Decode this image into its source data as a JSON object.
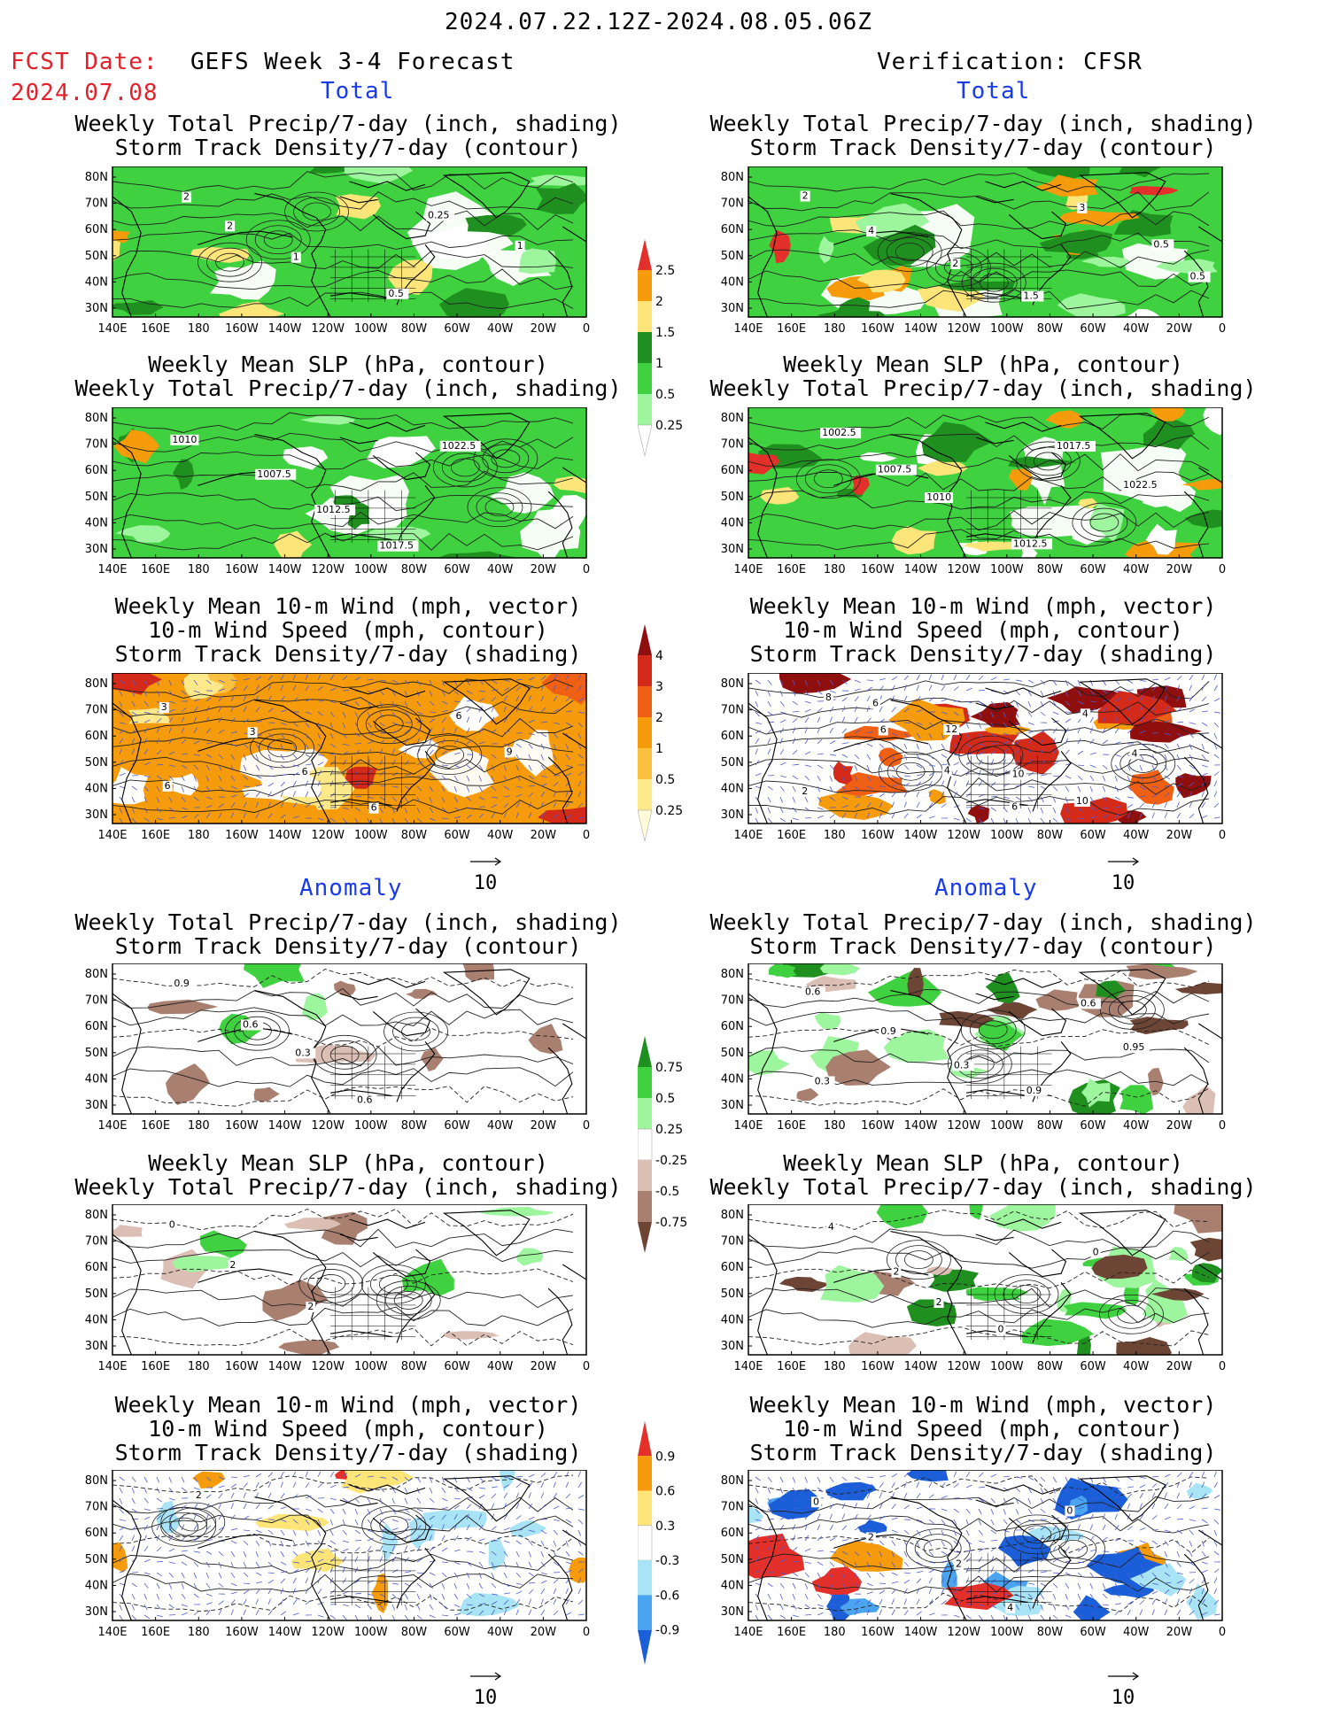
{
  "header": {
    "date_range": "2024.07.22.12Z-2024.08.05.06Z",
    "fcst_label": "FCST Date:",
    "fcst_date": "2024.07.08",
    "left_title": "GEFS Week 3-4 Forecast",
    "right_title": "Verification: CFSR"
  },
  "sections": {
    "total": "Total",
    "anomaly": "Anomaly"
  },
  "titles": {
    "precip_storm": [
      "Weekly Total Precip/7-day (inch, shading)",
      "Storm Track Density/7-day (contour)"
    ],
    "slp_precip": [
      "Weekly Mean SLP (hPa, contour)",
      "Weekly Total Precip/7-day (inch, shading)"
    ],
    "wind": [
      "Weekly Mean 10-m Wind (mph, vector)",
      "10-m Wind Speed (mph, contour)",
      "Storm Track Density/7-day (shading)"
    ]
  },
  "axes": {
    "lon_labels": [
      "140E",
      "160E",
      "180",
      "160W",
      "140W",
      "120W",
      "100W",
      "80W",
      "60W",
      "40W",
      "20W",
      "0"
    ],
    "lat_labels": [
      "80N",
      "70N",
      "60N",
      "50N",
      "40N",
      "30N"
    ]
  },
  "vector_key": "10",
  "colorbars": {
    "precip_total": {
      "labels": [
        "2.5",
        "2",
        "1.5",
        "1",
        "0.5",
        "0.25"
      ],
      "colors": [
        "#e4302a",
        "#f59b0c",
        "#fde57a",
        "#1f8f1f",
        "#3fd13f",
        "#9df59d",
        "#ffffff"
      ]
    },
    "storm_total": {
      "labels": [
        "4",
        "3",
        "2",
        "1",
        "0.5",
        "0.25"
      ],
      "colors": [
        "#8f0f0f",
        "#d42a1a",
        "#f06014",
        "#f59b0c",
        "#fcc040",
        "#fde88a",
        "#fffbd8"
      ]
    },
    "precip_anom": {
      "labels": [
        "0.75",
        "0.5",
        "0.25",
        "-0.25",
        "-0.5",
        "-0.75"
      ],
      "colors": [
        "#1f8f1f",
        "#3fd13f",
        "#9df59d",
        "#ffffff",
        "#dbbfb4",
        "#a97f70",
        "#6d4535"
      ]
    },
    "storm_anom": {
      "labels": [
        "0.9",
        "0.6",
        "0.3",
        "-0.3",
        "-0.6",
        "-0.9"
      ],
      "colors": [
        "#e4302a",
        "#f59b0c",
        "#fde57a",
        "#ffffff",
        "#a8e4f6",
        "#4aa4f0",
        "#1a5ed8"
      ]
    }
  },
  "panels": [
    {
      "id": "fc-total-precip",
      "labels": [
        "2",
        "2",
        "1",
        "0.5",
        "0.25",
        "1"
      ],
      "fill": "precip",
      "contours": "black"
    },
    {
      "id": "ver-total-precip",
      "labels": [
        "2",
        "4",
        "2",
        "1.5",
        "3",
        "0.5",
        "0.5"
      ],
      "fill": "precip-heavy",
      "contours": "black"
    },
    {
      "id": "fc-total-slp",
      "labels": [
        "1010",
        "1007.5",
        "1012.5",
        "1017.5",
        "1022.5"
      ],
      "fill": "precip",
      "contours": "black"
    },
    {
      "id": "ver-total-slp",
      "labels": [
        "1002.5",
        "1007.5",
        "1010",
        "1012.5",
        "1017.5",
        "1022.5"
      ],
      "fill": "precip-heavy",
      "contours": "black"
    },
    {
      "id": "fc-total-wind",
      "labels": [
        "3",
        "3",
        "6",
        "6",
        "6",
        "9",
        "6"
      ],
      "fill": "storm",
      "contours": "black"
    },
    {
      "id": "ver-total-wind",
      "labels": [
        "8",
        "6",
        "4",
        "6",
        "4",
        "4",
        "2",
        "6",
        "12",
        "10",
        "10"
      ],
      "fill": "storm-heavy",
      "contours": "black"
    },
    {
      "id": "fc-anom-precip",
      "labels": [
        "0.9",
        "0.6",
        "0.3",
        "0.6"
      ],
      "fill": "anom-precip-light",
      "contours": "black"
    },
    {
      "id": "ver-anom-precip",
      "labels": [
        "0.6",
        "0.9",
        "0.3",
        "0.9",
        "0.6",
        "0.95",
        "0.3"
      ],
      "fill": "anom-precip",
      "contours": "black"
    },
    {
      "id": "fc-anom-slp",
      "labels": [
        "0",
        "2",
        "2"
      ],
      "fill": "anom-precip-light",
      "contours": "black"
    },
    {
      "id": "ver-anom-slp",
      "labels": [
        "4",
        "2",
        "2",
        "0",
        "0"
      ],
      "fill": "anom-precip",
      "contours": "black"
    },
    {
      "id": "fc-anom-wind",
      "labels": [
        "2"
      ],
      "fill": "anom-storm-light",
      "contours": "black"
    },
    {
      "id": "ver-anom-wind",
      "labels": [
        "0",
        "2",
        "2",
        "4",
        "0"
      ],
      "fill": "anom-storm",
      "contours": "black"
    }
  ]
}
